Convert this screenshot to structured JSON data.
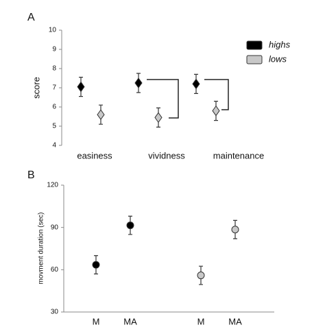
{
  "chart_data": [
    {
      "type": "dot",
      "panel_label": "A",
      "y_label": "score",
      "marker": "diamond",
      "categories": [
        "easiness",
        "vividness",
        "maintenance"
      ],
      "ylim": [
        4,
        10
      ],
      "yticks": [
        4,
        5,
        6,
        7,
        8,
        9,
        10
      ],
      "series": [
        {
          "name": "highs",
          "color": "#000000",
          "values": [
            7.05,
            7.25,
            7.2
          ],
          "errors": [
            0.5,
            0.5,
            0.5
          ]
        },
        {
          "name": "lows",
          "color": "#c8c8c8",
          "values": [
            5.6,
            5.45,
            5.8
          ],
          "errors": [
            0.5,
            0.5,
            0.5
          ]
        }
      ]
    },
    {
      "type": "dot",
      "panel_label": "B",
      "y_label": "movment duration (sec)",
      "marker": "circle",
      "categories": [
        "M",
        "MA",
        "M",
        "MA"
      ],
      "ylim": [
        30,
        120
      ],
      "yticks": [
        30,
        60,
        90,
        120
      ],
      "series": [
        {
          "color": "#000000",
          "values": [
            63.5,
            91.5,
            null,
            null
          ],
          "errors": [
            6.5,
            6.5,
            null,
            null
          ]
        },
        {
          "color": "#c8c8c8",
          "values": [
            null,
            null,
            56,
            88.5
          ],
          "errors": [
            null,
            null,
            6.5,
            6.5
          ]
        }
      ]
    }
  ]
}
